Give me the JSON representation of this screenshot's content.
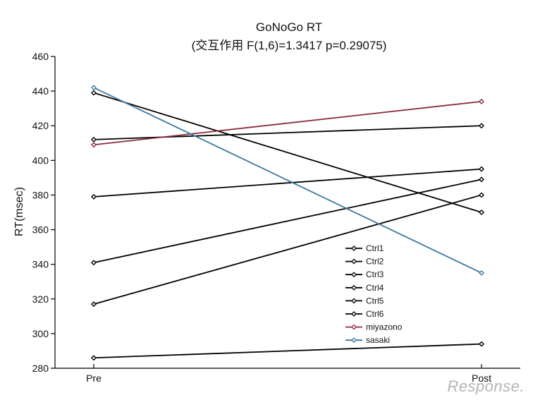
{
  "chart_data": {
    "type": "line",
    "title": "GoNoGo RT",
    "subtitle": "(交互作用 F(1,6)=1.3417 p=0.29075)",
    "xlabel": "",
    "ylabel": "RT(msec)",
    "categories": [
      "Pre",
      "Post"
    ],
    "ylim": [
      280,
      460
    ],
    "yticks": [
      280,
      300,
      320,
      340,
      360,
      380,
      400,
      420,
      440,
      460
    ],
    "legend_position": "center-right",
    "series": [
      {
        "name": "Ctrl1",
        "values": [
          439,
          370
        ],
        "color": "#000000"
      },
      {
        "name": "Ctrl2",
        "values": [
          412,
          420
        ],
        "color": "#000000"
      },
      {
        "name": "Ctrl3",
        "values": [
          379,
          395
        ],
        "color": "#000000"
      },
      {
        "name": "Ctrl4",
        "values": [
          341,
          389
        ],
        "color": "#000000"
      },
      {
        "name": "Ctrl5",
        "values": [
          317,
          380
        ],
        "color": "#000000"
      },
      {
        "name": "Ctrl6",
        "values": [
          286,
          294
        ],
        "color": "#000000"
      },
      {
        "name": "miyazono",
        "values": [
          409,
          434
        ],
        "color": "#8b2a3e"
      },
      {
        "name": "sasaki",
        "values": [
          442,
          335
        ],
        "color": "#3a7aa0"
      }
    ]
  },
  "watermark": "Response."
}
